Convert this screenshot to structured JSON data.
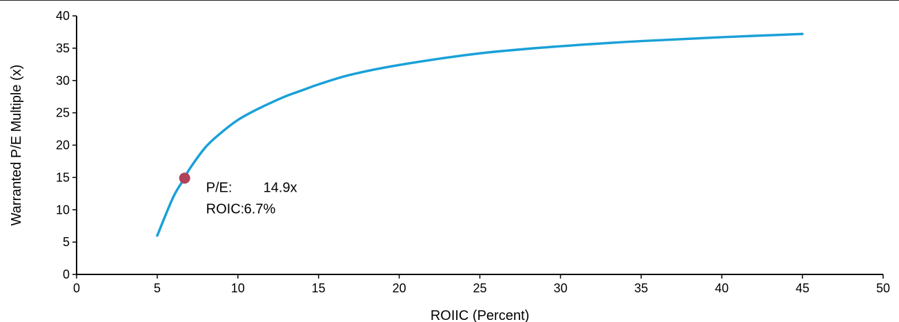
{
  "chart_data": {
    "type": "line",
    "title": "",
    "xlabel": "ROIIC (Percent)",
    "ylabel": "Warranted P/E Multiple (x)",
    "xlim": [
      0,
      50
    ],
    "ylim": [
      0,
      40
    ],
    "x_ticks": [
      0,
      5,
      10,
      15,
      20,
      25,
      30,
      35,
      40,
      45,
      50
    ],
    "y_ticks": [
      0,
      5,
      10,
      15,
      20,
      25,
      30,
      35,
      40
    ],
    "grid": false,
    "series": [
      {
        "color": "#1aa0d8",
        "x": [
          5,
          6,
          6.7,
          7,
          8,
          9,
          10,
          11,
          12,
          13,
          14,
          15,
          17,
          20,
          25,
          30,
          35,
          40,
          45
        ],
        "y": [
          6,
          12,
          14.9,
          16.3,
          19.7,
          22,
          23.9,
          25.3,
          26.5,
          27.6,
          28.5,
          29.4,
          30.9,
          32.4,
          34.2,
          35.3,
          36.1,
          36.7,
          37.2
        ]
      }
    ],
    "highlight": {
      "x": 6.7,
      "y": 14.9,
      "color": "#b0425a",
      "label1_key": "P/E:",
      "label1_val": "14.9x",
      "label2_key": "ROIC:",
      "label2_val": "6.7%"
    }
  }
}
